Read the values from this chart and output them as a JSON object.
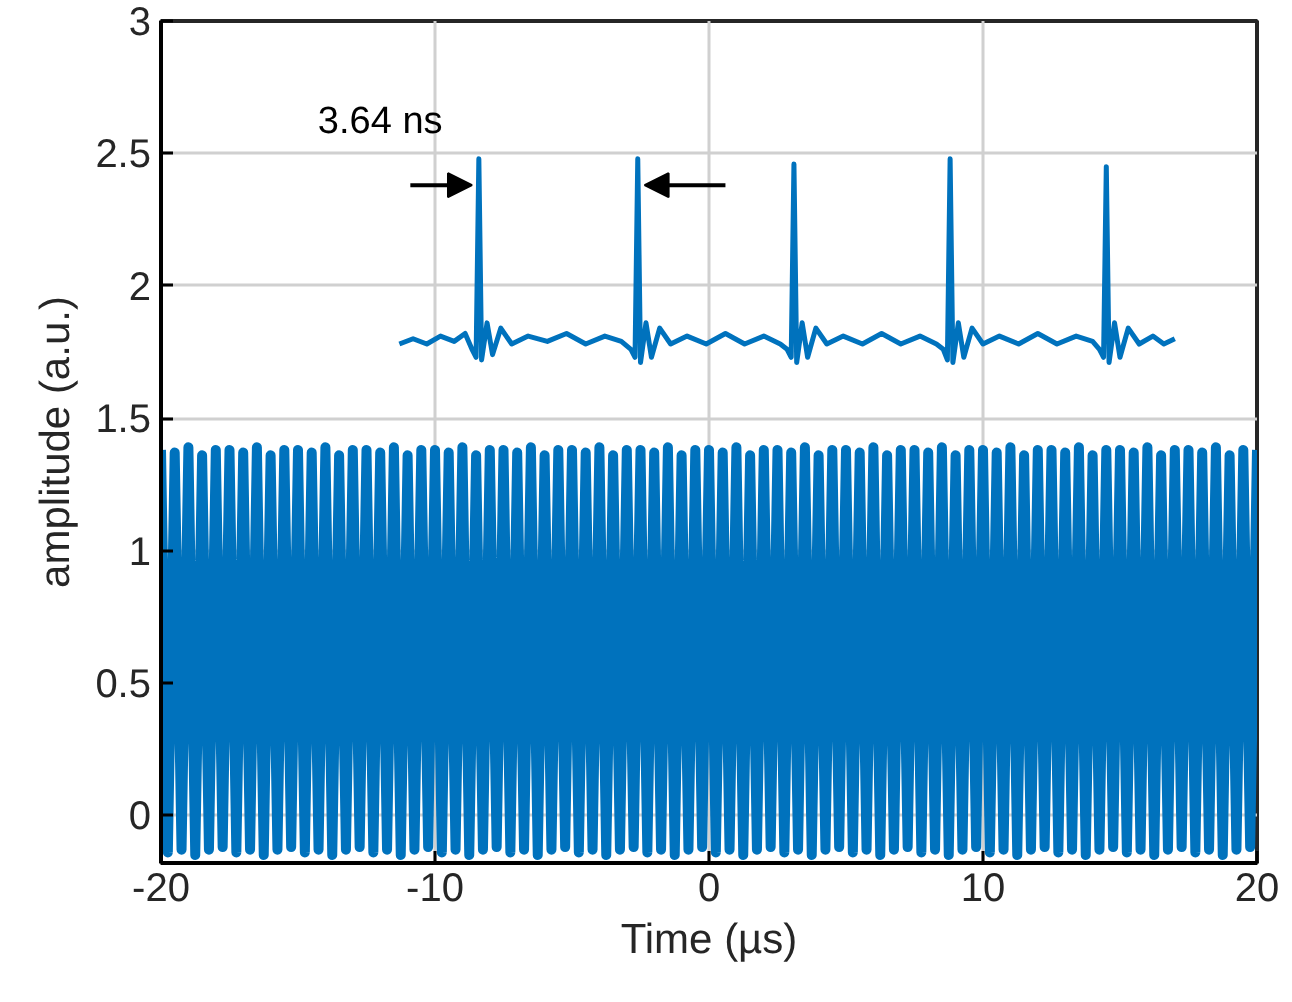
{
  "chart_data": {
    "type": "line",
    "xlabel": "Time (µs)",
    "ylabel": "amplitude (a.u.)",
    "xlim": [
      -20,
      20
    ],
    "ylim": [
      -0.18,
      3
    ],
    "xticks": [
      {
        "value": -20,
        "label": "-20"
      },
      {
        "value": -10,
        "label": "-10"
      },
      0,
      10,
      20
    ],
    "yticks": [
      0,
      0.5,
      1,
      1.5,
      2,
      2.5,
      3
    ],
    "grid": true,
    "annotations": [
      "3.64 ns"
    ],
    "series": [
      {
        "color": "#0072bd",
        "x": [
          -20,
          -19.75,
          -19.5,
          -19.25,
          -19,
          -18.75,
          -18.5,
          -18.25,
          -18,
          -17.75,
          -17.5,
          -17.25,
          -17,
          -16.75,
          -16.5,
          -16.25,
          -16,
          -15.75,
          -15.5,
          -15.25,
          -15,
          -14.75,
          -14.5,
          -14.25,
          -14,
          -13.75,
          -13.5,
          -13.25,
          -13,
          -12.75,
          -12.5,
          -12.25,
          -12,
          -11.75,
          -11.5,
          -11.25,
          -11,
          -10.75,
          -10.5,
          -10.25,
          -10,
          -9.75,
          -9.5,
          -9.25,
          -9,
          -8.75,
          -8.5,
          -8.25,
          -8,
          -7.75,
          -7.5,
          -7.25,
          -7,
          -6.75,
          -6.5,
          -6.25,
          -6,
          -5.75,
          -5.5,
          -5.25,
          -5,
          -4.75,
          -4.5,
          -4.25,
          -4,
          -3.75,
          -3.5,
          -3.25,
          -3,
          -2.75,
          -2.5,
          -2.25,
          -2,
          -1.75,
          -1.5,
          -1.25,
          -1,
          -0.75,
          -0.5,
          -0.25,
          0,
          0.25,
          0.5,
          0.75,
          1,
          1.25,
          1.5,
          1.75,
          2,
          2.25,
          2.5,
          2.75,
          3,
          3.25,
          3.5,
          3.75,
          4,
          4.25,
          4.5,
          4.75,
          5,
          5.25,
          5.5,
          5.75,
          6,
          6.25,
          6.5,
          6.75,
          7,
          7.25,
          7.5,
          7.75,
          8,
          8.25,
          8.5,
          8.75,
          9,
          9.25,
          9.5,
          9.75,
          10,
          10.25,
          10.5,
          10.75,
          11,
          11.25,
          11.5,
          11.75,
          12,
          12.25,
          12.5,
          12.75,
          13,
          13.25,
          13.5,
          13.75,
          14,
          14.25,
          14.5,
          14.75,
          15,
          15.25,
          15.5,
          15.75,
          16,
          16.25,
          16.5,
          16.75,
          17,
          17.25,
          17.5,
          17.75,
          18,
          18.25,
          18.5,
          18.75,
          19,
          19.25,
          19.5,
          19.75,
          20
        ],
        "values": [
          1.38,
          -0.14,
          1.37,
          -0.13,
          1.39,
          -0.15,
          1.36,
          -0.13,
          1.38,
          -0.12,
          1.38,
          -0.14,
          1.37,
          -0.13,
          1.39,
          -0.15,
          1.36,
          -0.13,
          1.38,
          -0.12,
          1.38,
          -0.14,
          1.37,
          -0.13,
          1.39,
          -0.15,
          1.36,
          -0.13,
          1.38,
          -0.12,
          1.38,
          -0.14,
          1.37,
          -0.13,
          1.39,
          -0.15,
          1.36,
          -0.13,
          1.38,
          -0.12,
          1.38,
          -0.14,
          1.37,
          -0.13,
          1.39,
          -0.15,
          1.36,
          -0.13,
          1.38,
          -0.12,
          1.38,
          -0.14,
          1.37,
          -0.13,
          1.39,
          -0.15,
          1.36,
          -0.13,
          1.38,
          -0.12,
          1.38,
          -0.14,
          1.37,
          -0.13,
          1.39,
          -0.15,
          1.36,
          -0.13,
          1.38,
          -0.12,
          1.38,
          -0.14,
          1.37,
          -0.13,
          1.39,
          -0.15,
          1.36,
          -0.13,
          1.38,
          -0.12,
          1.38,
          -0.14,
          1.37,
          -0.13,
          1.39,
          -0.15,
          1.36,
          -0.13,
          1.38,
          -0.12,
          1.38,
          -0.14,
          1.37,
          -0.13,
          1.39,
          -0.15,
          1.36,
          -0.13,
          1.38,
          -0.12,
          1.38,
          -0.14,
          1.37,
          -0.13,
          1.39,
          -0.15,
          1.36,
          -0.13,
          1.38,
          -0.12,
          1.38,
          -0.14,
          1.37,
          -0.13,
          1.39,
          -0.15,
          1.36,
          -0.13,
          1.38,
          -0.12,
          1.38,
          -0.14,
          1.37,
          -0.13,
          1.39,
          -0.15,
          1.36,
          -0.13,
          1.38,
          -0.12,
          1.38,
          -0.14,
          1.37,
          -0.13,
          1.39,
          -0.15,
          1.36,
          -0.13,
          1.38,
          -0.12,
          1.38,
          -0.14,
          1.37,
          -0.13,
          1.39,
          -0.15,
          1.36,
          -0.13,
          1.38,
          -0.12,
          1.38,
          -0.14,
          1.37,
          -0.13,
          1.39,
          -0.15,
          1.36,
          -0.13,
          1.38,
          -0.12,
          1.38
        ]
      },
      {
        "color": "#0072bd",
        "x": [
          -11.3,
          -10.8,
          -10.3,
          -9.8,
          -9.3,
          -8.9,
          -8.65,
          -8.5,
          -8.4,
          -8.3,
          -8.1,
          -7.9,
          -7.6,
          -7.2,
          -6.6,
          -5.9,
          -5.2,
          -4.5,
          -3.8,
          -3.2,
          -2.85,
          -2.7,
          -2.6,
          -2.5,
          -2.3,
          -2.1,
          -1.8,
          -1.4,
          -0.8,
          -0.1,
          0.6,
          1.3,
          2.0,
          2.6,
          2.85,
          3.0,
          3.1,
          3.2,
          3.4,
          3.6,
          3.9,
          4.3,
          4.9,
          5.6,
          6.3,
          7.0,
          7.7,
          8.3,
          8.55,
          8.7,
          8.8,
          8.9,
          9.1,
          9.3,
          9.6,
          10.0,
          10.6,
          11.3,
          12.0,
          12.7,
          13.4,
          14.0,
          14.25,
          14.4,
          14.5,
          14.6,
          14.8,
          15.0,
          15.3,
          15.7,
          16.2,
          16.6,
          17.0
        ],
        "values": [
          1.78,
          1.8,
          1.78,
          1.81,
          1.79,
          1.82,
          1.76,
          1.73,
          2.48,
          1.72,
          1.86,
          1.74,
          1.84,
          1.78,
          1.81,
          1.79,
          1.82,
          1.78,
          1.81,
          1.79,
          1.76,
          1.73,
          2.48,
          1.71,
          1.86,
          1.73,
          1.84,
          1.78,
          1.81,
          1.78,
          1.82,
          1.78,
          1.81,
          1.78,
          1.76,
          1.73,
          2.46,
          1.71,
          1.86,
          1.73,
          1.84,
          1.78,
          1.81,
          1.78,
          1.82,
          1.78,
          1.81,
          1.78,
          1.76,
          1.72,
          2.48,
          1.71,
          1.86,
          1.73,
          1.84,
          1.78,
          1.81,
          1.78,
          1.82,
          1.78,
          1.81,
          1.79,
          1.76,
          1.73,
          2.45,
          1.71,
          1.86,
          1.73,
          1.84,
          1.78,
          1.81,
          1.78,
          1.8
        ]
      }
    ]
  }
}
